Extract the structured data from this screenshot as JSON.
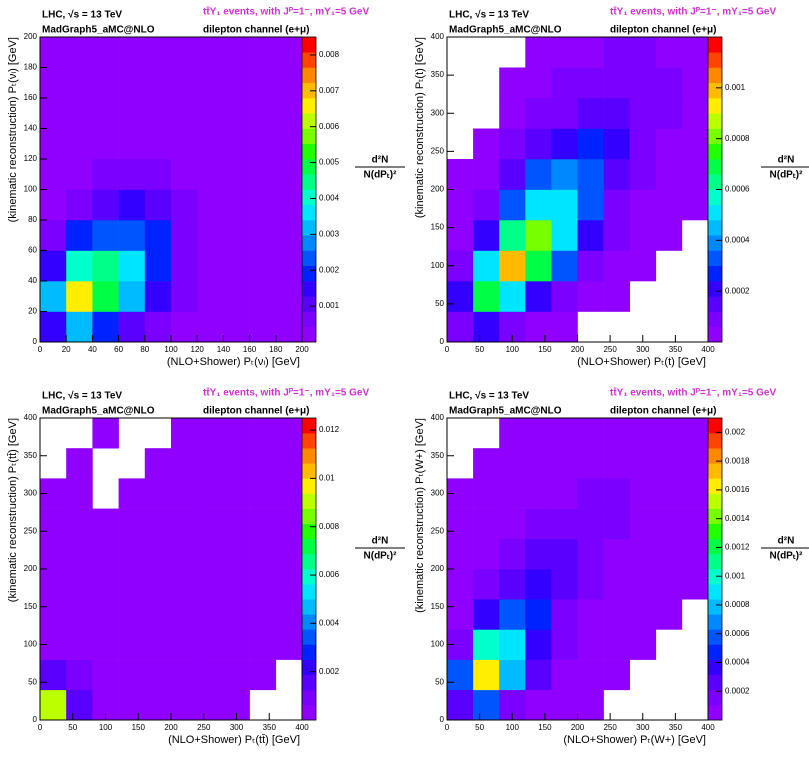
{
  "chart_data": [
    {
      "type": "heatmap",
      "header_left_1": "LHC, √s = 13 TeV",
      "header_left_2": "MadGraph5_aMC@NLO",
      "header_right_1": "tt̄Y₁ events, with Jᴾ=1⁻, mY₁=5 GeV",
      "header_right_2": "dilepton channel (e+μ)",
      "xlabel": "(NLO+Shower) Pₜ(νₗ) [GeV]",
      "ylabel": "(kinematic reconstruction) Pₜ(νₗ) [GeV]",
      "zlabel_num": "d²N",
      "zlabel_den": "N(dPₜ)²",
      "xlim": [
        0,
        200
      ],
      "ylim": [
        0,
        200
      ],
      "xticks": [
        0,
        20,
        40,
        60,
        80,
        100,
        120,
        140,
        160,
        180,
        200
      ],
      "yticks": [
        0,
        20,
        40,
        60,
        80,
        100,
        120,
        140,
        160,
        180,
        200
      ],
      "zlim": [
        0,
        0.0085
      ],
      "zticks": [
        0.001,
        0.002,
        0.003,
        0.004,
        0.005,
        0.006,
        0.007,
        0.008
      ],
      "palette": [
        "#8f00ff",
        "#7a00ff",
        "#5a00ff",
        "#3300ff",
        "#0022ff",
        "#0055ff",
        "#0088ff",
        "#00bbff",
        "#00e5ff",
        "#00ffcc",
        "#00ff88",
        "#00ff44",
        "#22ff00",
        "#77ff00",
        "#bbff00",
        "#ffee00",
        "#ffbb00",
        "#ff8800",
        "#ff4400",
        "#ff0000"
      ],
      "z": [
        [
          0.0015,
          0.003,
          0.002,
          0.001,
          0.0005,
          0.0003,
          0.0002,
          0.0002,
          0.0002,
          0.0002
        ],
        [
          0.003,
          0.0065,
          0.005,
          0.003,
          0.0015,
          0.0006,
          0.0003,
          0.0002,
          0.0002,
          0.0002
        ],
        [
          0.0015,
          0.004,
          0.0045,
          0.0035,
          0.002,
          0.0008,
          0.0003,
          0.0002,
          0.0002,
          0.0002
        ],
        [
          0.0007,
          0.0018,
          0.0025,
          0.0025,
          0.0018,
          0.0008,
          0.0003,
          0.0002,
          0.0002,
          0.0002
        ],
        [
          0.0004,
          0.0008,
          0.0012,
          0.0013,
          0.0012,
          0.0006,
          0.0003,
          0.0002,
          0.0002,
          0.0002
        ],
        [
          0.0003,
          0.0004,
          0.0006,
          0.0007,
          0.0006,
          0.0004,
          0.0002,
          0.0002,
          0.0002,
          0.0002
        ],
        [
          0.0002,
          0.0003,
          0.0004,
          0.0004,
          0.0004,
          0.0003,
          0.0002,
          0.0002,
          0.0002,
          0.0002
        ],
        [
          0.0002,
          0.0002,
          0.0003,
          0.0003,
          0.0003,
          0.0002,
          0.0002,
          0.0002,
          0.0002,
          0.0002
        ],
        [
          0.0002,
          0.0002,
          0.0002,
          0.0002,
          0.0002,
          0.0002,
          0.0002,
          0.0002,
          0.0002,
          0.0002
        ],
        [
          0.0002,
          0.0002,
          0.0002,
          0.0002,
          0.0002,
          0.0002,
          0.0002,
          0.0002,
          0.0002,
          0.0002
        ]
      ]
    },
    {
      "type": "heatmap",
      "header_left_1": "LHC, √s = 13 TeV",
      "header_left_2": "MadGraph5_aMC@NLO",
      "header_right_1": "tt̄Y₁ events, with Jᴾ=1⁻, mY₁=5 GeV",
      "header_right_2": "dilepton channel (e+μ)",
      "xlabel": "(NLO+Shower) Pₜ(t) [GeV]",
      "ylabel": "(kinematic reconstruction) Pₜ(t) [GeV]",
      "zlabel_num": "d²N",
      "zlabel_den": "N(dPₜ)²",
      "xlim": [
        0,
        400
      ],
      "ylim": [
        0,
        400
      ],
      "xticks": [
        0,
        50,
        100,
        150,
        200,
        250,
        300,
        350,
        400
      ],
      "yticks": [
        0,
        50,
        100,
        150,
        200,
        250,
        300,
        350,
        400
      ],
      "zlim": [
        0,
        0.0012
      ],
      "zticks": [
        0.0002,
        0.0004,
        0.0006,
        0.0008,
        0.001
      ],
      "palette": [
        "#8f00ff",
        "#7a00ff",
        "#5a00ff",
        "#3300ff",
        "#0022ff",
        "#0055ff",
        "#0088ff",
        "#00bbff",
        "#00e5ff",
        "#00ffcc",
        "#00ff88",
        "#00ff44",
        "#22ff00",
        "#77ff00",
        "#bbff00",
        "#ffee00",
        "#ffbb00",
        "#ff8800",
        "#ff4400",
        "#ff0000"
      ],
      "z": [
        [
          0.0001,
          0.0002,
          0.0001,
          5e-05,
          3e-05,
          null,
          null,
          null,
          null,
          null
        ],
        [
          0.0002,
          0.0007,
          0.0005,
          0.0002,
          0.0001,
          4e-05,
          3e-05,
          null,
          null,
          null
        ],
        [
          0.0001,
          0.0005,
          0.001,
          0.0007,
          0.0003,
          0.0001,
          4e-05,
          3e-05,
          null,
          null
        ],
        [
          5e-05,
          0.0002,
          0.0006,
          0.0008,
          0.0005,
          0.0002,
          8e-05,
          4e-05,
          3e-05,
          null
        ],
        [
          3e-05,
          0.0001,
          0.0003,
          0.0005,
          0.0005,
          0.0003,
          0.0001,
          5e-05,
          3e-05,
          3e-05
        ],
        [
          3e-05,
          5e-05,
          0.00015,
          0.0003,
          0.0004,
          0.0003,
          0.00015,
          6e-05,
          4e-05,
          3e-05
        ],
        [
          null,
          3e-05,
          6e-05,
          0.00015,
          0.0002,
          0.00025,
          0.0002,
          0.0001,
          5e-05,
          3e-05
        ],
        [
          null,
          null,
          4e-05,
          8e-05,
          0.0001,
          0.00015,
          0.00015,
          0.0001,
          6e-05,
          4e-05
        ],
        [
          null,
          null,
          3e-05,
          4e-05,
          6e-05,
          8e-05,
          0.0001,
          0.0001,
          6e-05,
          4e-05
        ],
        [
          null,
          null,
          null,
          3e-05,
          4e-05,
          5e-05,
          6e-05,
          6e-05,
          5e-05,
          4e-05
        ]
      ]
    },
    {
      "type": "heatmap",
      "header_left_1": "LHC, √s = 13 TeV",
      "header_left_2": "MadGraph5_aMC@NLO",
      "header_right_1": "tt̄Y₁ events, with Jᴾ=1⁻, mY₁=5 GeV",
      "header_right_2": "dilepton channel (e+μ)",
      "xlabel": "(NLO+Shower) Pₜ(tt̄) [GeV]",
      "ylabel": "(kinematic reconstruction) Pₜ(tt̄) [GeV]",
      "zlabel_num": "d²N",
      "zlabel_den": "N(dPₜ)²",
      "xlim": [
        0,
        400
      ],
      "ylim": [
        0,
        400
      ],
      "xticks": [
        0,
        50,
        100,
        150,
        200,
        250,
        300,
        350,
        400
      ],
      "yticks": [
        0,
        50,
        100,
        150,
        200,
        250,
        300,
        350,
        400
      ],
      "zlim": [
        0,
        0.0125
      ],
      "zticks": [
        0.002,
        0.004,
        0.006,
        0.008,
        0.01,
        0.012
      ],
      "palette": [
        "#8f00ff",
        "#7a00ff",
        "#5a00ff",
        "#3300ff",
        "#0022ff",
        "#0055ff",
        "#0088ff",
        "#00bbff",
        "#00e5ff",
        "#00ffcc",
        "#00ff88",
        "#00ff44",
        "#22ff00",
        "#77ff00",
        "#bbff00",
        "#ffee00",
        "#ffbb00",
        "#ff8800",
        "#ff4400",
        "#ff0000"
      ],
      "z": [
        [
          0.009,
          0.0015,
          0.0005,
          0.0003,
          0.0002,
          0.0001,
          0.0001,
          0.0001,
          null,
          null
        ],
        [
          0.0015,
          0.0008,
          0.0005,
          0.0003,
          0.0002,
          0.0001,
          0.0001,
          0.0001,
          0.0001,
          null
        ],
        [
          0.0005,
          0.0005,
          0.0004,
          0.0003,
          0.0002,
          0.0001,
          0.0001,
          0.0001,
          0.0001,
          0.0001
        ],
        [
          0.0003,
          0.0003,
          0.0003,
          0.0002,
          0.0002,
          0.0002,
          0.0001,
          0.0001,
          0.0001,
          0.0001
        ],
        [
          0.0002,
          0.0002,
          0.0002,
          0.0002,
          0.0002,
          0.0002,
          0.0002,
          0.0001,
          0.0001,
          0.0001
        ],
        [
          0.0002,
          0.0002,
          0.0002,
          0.0001,
          0.0002,
          0.0002,
          0.0002,
          0.0002,
          0.0001,
          0.0001
        ],
        [
          0.0001,
          0.0001,
          0.0001,
          0.0001,
          0.0001,
          0.0002,
          0.0002,
          0.0002,
          0.0002,
          0.0001
        ],
        [
          0.0001,
          0.0001,
          null,
          0.0001,
          0.0001,
          0.0001,
          0.0002,
          0.0002,
          0.0002,
          0.0002
        ],
        [
          null,
          0.0001,
          null,
          null,
          0.0001,
          0.0001,
          0.0001,
          0.0002,
          0.0002,
          0.0002
        ],
        [
          null,
          null,
          0.0001,
          null,
          null,
          0.0001,
          0.0001,
          0.0001,
          0.0002,
          0.0002
        ]
      ]
    },
    {
      "type": "heatmap",
      "header_left_1": "LHC, √s = 13 TeV",
      "header_left_2": "MadGraph5_aMC@NLO",
      "header_right_1": "tt̄Y₁ events, with Jᴾ=1⁻, mY₁=5 GeV",
      "header_right_2": "dilepton channel (e+μ)",
      "xlabel": "(NLO+Shower) Pₜ(W+) [GeV]",
      "ylabel": "(kinematic reconstruction) Pₜ(W+) [GeV]",
      "zlabel_num": "d²N",
      "zlabel_den": "N(dPₜ)²",
      "xlim": [
        0,
        400
      ],
      "ylim": [
        0,
        400
      ],
      "xticks": [
        0,
        50,
        100,
        150,
        200,
        250,
        300,
        350,
        400
      ],
      "yticks": [
        0,
        50,
        100,
        150,
        200,
        250,
        300,
        350,
        400
      ],
      "zlim": [
        0,
        0.0021
      ],
      "zticks": [
        0.0002,
        0.0004,
        0.0006,
        0.0008,
        0.001,
        0.0012,
        0.0014,
        0.0016,
        0.0018,
        0.002
      ],
      "palette": [
        "#8f00ff",
        "#7a00ff",
        "#5a00ff",
        "#3300ff",
        "#0022ff",
        "#0055ff",
        "#0088ff",
        "#00bbff",
        "#00e5ff",
        "#00ffcc",
        "#00ff88",
        "#00ff44",
        "#22ff00",
        "#77ff00",
        "#bbff00",
        "#ffee00",
        "#ffbb00",
        "#ff8800",
        "#ff4400",
        "#ff0000"
      ],
      "z": [
        [
          0.0003,
          0.0006,
          0.0002,
          0.0001,
          5e-05,
          3e-05,
          null,
          null,
          null,
          null
        ],
        [
          0.0006,
          0.0016,
          0.0008,
          0.0003,
          0.0001,
          5e-05,
          3e-05,
          null,
          null,
          null
        ],
        [
          0.0002,
          0.001,
          0.0009,
          0.0004,
          0.00015,
          6e-05,
          3e-05,
          3e-05,
          null,
          null
        ],
        [
          8e-05,
          0.0004,
          0.0006,
          0.0005,
          0.0002,
          0.0001,
          5e-05,
          3e-05,
          3e-05,
          null
        ],
        [
          4e-05,
          0.00015,
          0.0003,
          0.0004,
          0.0003,
          0.00015,
          6e-05,
          4e-05,
          3e-05,
          3e-05
        ],
        [
          3e-05,
          8e-05,
          0.00015,
          0.00025,
          0.0003,
          0.0002,
          0.0001,
          5e-05,
          4e-05,
          3e-05
        ],
        [
          3e-05,
          4e-05,
          8e-05,
          0.00012,
          0.00018,
          0.0002,
          0.00015,
          8e-05,
          5e-05,
          3e-05
        ],
        [
          3e-05,
          3e-05,
          5e-05,
          8e-05,
          0.0001,
          0.00012,
          0.00012,
          0.0001,
          6e-05,
          4e-05
        ],
        [
          null,
          3e-05,
          3e-05,
          5e-05,
          6e-05,
          8e-05,
          0.0001,
          0.0001,
          6e-05,
          4e-05
        ],
        [
          null,
          null,
          3e-05,
          3e-05,
          4e-05,
          5e-05,
          6e-05,
          6e-05,
          5e-05,
          4e-05
        ]
      ]
    }
  ]
}
